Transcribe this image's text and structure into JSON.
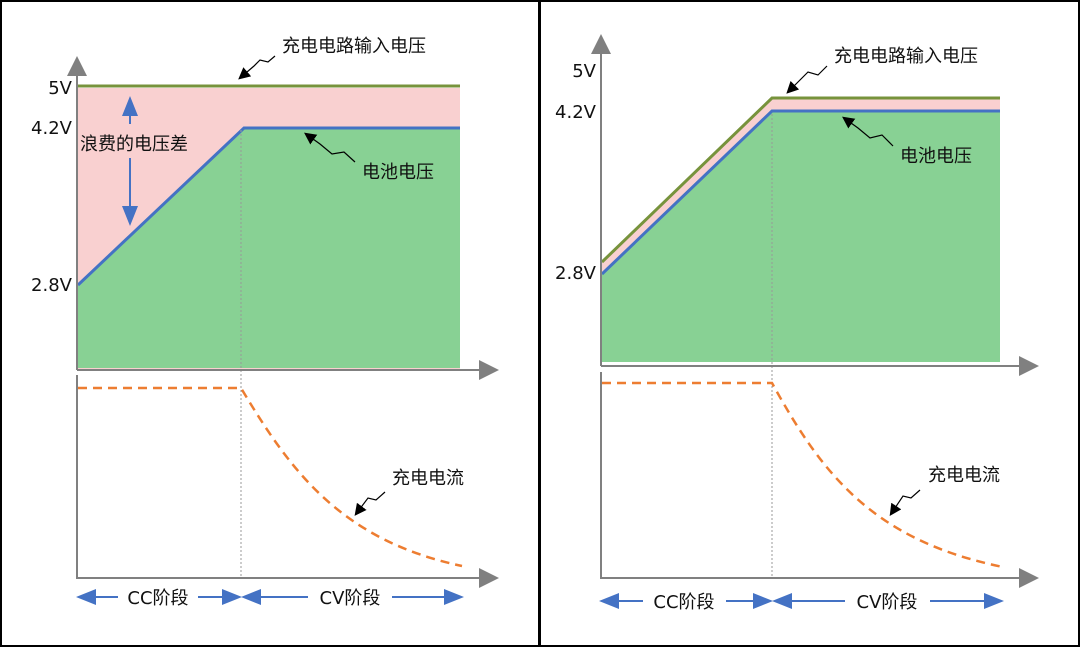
{
  "left_panel": {
    "y_ticks": [
      "5V",
      "4.2V",
      "2.8V"
    ],
    "input_voltage_label": "充电电路输入电压",
    "battery_voltage_label": "电池电压",
    "wasted_voltage_label": "浪费的电压差",
    "charge_current_label": "充电电流",
    "cc_phase_label": "CC阶段",
    "cv_phase_label": "CV阶段"
  },
  "right_panel": {
    "y_ticks": [
      "5V",
      "4.2V",
      "2.8V"
    ],
    "input_voltage_label": "充电电路输入电压",
    "battery_voltage_label": "电池电压",
    "charge_current_label": "充电电流",
    "cc_phase_label": "CC阶段",
    "cv_phase_label": "CV阶段"
  },
  "colors": {
    "input_voltage": "#77933c",
    "battery_voltage": "#4472c4",
    "battery_fill": "#88d194",
    "wasted_fill": "#f9d0d0",
    "current": "#ed7d31",
    "axis": "#808080",
    "phase_arrow": "#4472c4"
  }
}
